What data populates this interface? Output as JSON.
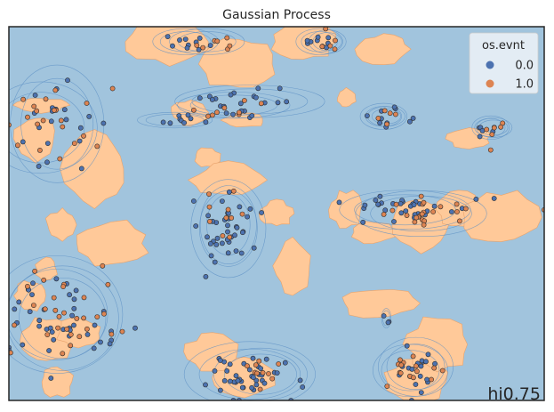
{
  "chart_data": {
    "type": "scatter",
    "title": "Gaussian Process",
    "xlabel": "",
    "ylabel": "",
    "xlim": [
      0,
      1
    ],
    "ylim": [
      0,
      1
    ],
    "grid": false,
    "legend": {
      "title": "os.evnt",
      "placement": "top-right",
      "entries": [
        {
          "label": "0.0",
          "color": "#4c72b0"
        },
        {
          "label": "1.0",
          "color": "#dd8452"
        }
      ]
    },
    "background_color": "#a1c4dd",
    "region_color": "#ffc999",
    "annotation": "hi0.75",
    "clusters": [
      {
        "label": "0.0",
        "cx": 0.33,
        "cy": 0.96,
        "rx": 0.035,
        "ry": 0.02,
        "n": 10
      },
      {
        "label": "1.0",
        "cx": 0.37,
        "cy": 0.96,
        "rx": 0.04,
        "ry": 0.02,
        "n": 7
      },
      {
        "label": "0.0",
        "cx": 0.58,
        "cy": 0.96,
        "rx": 0.025,
        "ry": 0.02,
        "n": 9
      },
      {
        "label": "1.0",
        "cx": 0.595,
        "cy": 0.96,
        "rx": 0.02,
        "ry": 0.018,
        "n": 5
      },
      {
        "label": "0.0",
        "cx": 0.45,
        "cy": 0.8,
        "rx": 0.08,
        "ry": 0.025,
        "n": 22
      },
      {
        "label": "1.0",
        "cx": 0.42,
        "cy": 0.79,
        "rx": 0.06,
        "ry": 0.02,
        "n": 9
      },
      {
        "label": "0.0",
        "cx": 0.7,
        "cy": 0.76,
        "rx": 0.025,
        "ry": 0.02,
        "n": 10
      },
      {
        "label": "1.0",
        "cx": 0.705,
        "cy": 0.76,
        "rx": 0.02,
        "ry": 0.015,
        "n": 5
      },
      {
        "label": "0.0",
        "cx": 0.9,
        "cy": 0.73,
        "rx": 0.02,
        "ry": 0.018,
        "n": 6
      },
      {
        "label": "1.0",
        "cx": 0.905,
        "cy": 0.73,
        "rx": 0.02,
        "ry": 0.015,
        "n": 5
      },
      {
        "label": "0.0",
        "cx": 0.31,
        "cy": 0.75,
        "rx": 0.04,
        "ry": 0.012,
        "n": 9
      },
      {
        "label": "0.0",
        "cx": 0.09,
        "cy": 0.74,
        "rx": 0.05,
        "ry": 0.09,
        "n": 22
      },
      {
        "label": "1.0",
        "cx": 0.06,
        "cy": 0.73,
        "rx": 0.06,
        "ry": 0.07,
        "n": 20
      },
      {
        "label": "0.0",
        "cx": 0.41,
        "cy": 0.46,
        "rx": 0.04,
        "ry": 0.075,
        "n": 38
      },
      {
        "label": "1.0",
        "cx": 0.41,
        "cy": 0.47,
        "rx": 0.03,
        "ry": 0.06,
        "n": 9
      },
      {
        "label": "0.0",
        "cx": 0.74,
        "cy": 0.51,
        "rx": 0.07,
        "ry": 0.03,
        "n": 32
      },
      {
        "label": "1.0",
        "cx": 0.77,
        "cy": 0.5,
        "rx": 0.07,
        "ry": 0.035,
        "n": 22
      },
      {
        "label": "0.0",
        "cx": 0.09,
        "cy": 0.23,
        "rx": 0.07,
        "ry": 0.09,
        "n": 42
      },
      {
        "label": "1.0",
        "cx": 0.1,
        "cy": 0.22,
        "rx": 0.06,
        "ry": 0.08,
        "n": 28
      },
      {
        "label": "0.0",
        "cx": 0.45,
        "cy": 0.07,
        "rx": 0.07,
        "ry": 0.05,
        "n": 42
      },
      {
        "label": "1.0",
        "cx": 0.47,
        "cy": 0.07,
        "rx": 0.05,
        "ry": 0.04,
        "n": 10
      },
      {
        "label": "0.0",
        "cx": 0.76,
        "cy": 0.09,
        "rx": 0.04,
        "ry": 0.045,
        "n": 18
      },
      {
        "label": "1.0",
        "cx": 0.75,
        "cy": 0.08,
        "rx": 0.04,
        "ry": 0.04,
        "n": 16
      },
      {
        "label": "0.0",
        "cx": 0.705,
        "cy": 0.22,
        "rx": 0.005,
        "ry": 0.015,
        "n": 3
      }
    ],
    "isolated_points": [
      {
        "label": "1.0",
        "x": 0.165,
        "y": 0.68
      },
      {
        "label": "1.0",
        "x": 0.175,
        "y": 0.36
      },
      {
        "label": "1.0",
        "x": 0.185,
        "y": 0.31
      },
      {
        "label": "1.0",
        "x": 0.42,
        "y": 0.56
      },
      {
        "label": "1.0",
        "x": 1.0,
        "y": 0.51
      },
      {
        "label": "1.0",
        "x": 0.9,
        "y": 0.67
      }
    ]
  }
}
